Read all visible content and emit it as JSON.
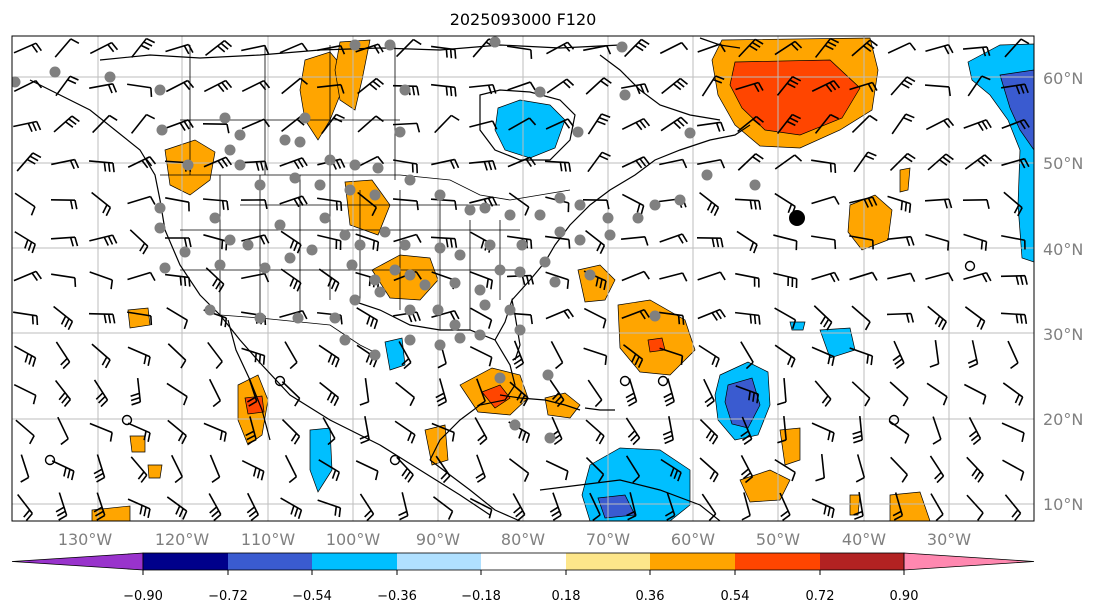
{
  "title": "2025093000 F120",
  "lon_labels": [
    "130°W",
    "120°W",
    "110°W",
    "100°W",
    "90°W",
    "80°W",
    "70°W",
    "60°W",
    "50°W",
    "40°W",
    "30°W"
  ],
  "lat_labels": [
    "60°N",
    "50°N",
    "40°N",
    "30°N",
    "20°N",
    "10°N"
  ],
  "colorbar": {
    "ticks": [
      "−0.90",
      "−0.72",
      "−0.54",
      "−0.36",
      "−0.18",
      "0.18",
      "0.36",
      "0.54",
      "0.72",
      "0.90"
    ],
    "colors": {
      "under": "#9933cc",
      "bins": [
        "#00008b",
        "#3a5bd0",
        "#00bfff",
        "#b0e0ff",
        "#ffffff",
        "#fde68a",
        "#ffa500",
        "#ff4500",
        "#b22222"
      ],
      "over": "#ff88b0"
    }
  },
  "map_colors": {
    "orange": "#ffa500",
    "red_orange": "#ff4500",
    "deep_sky_blue": "#00bfff",
    "royal_blue": "#3a5bd0",
    "station_dot": "#808080"
  }
}
